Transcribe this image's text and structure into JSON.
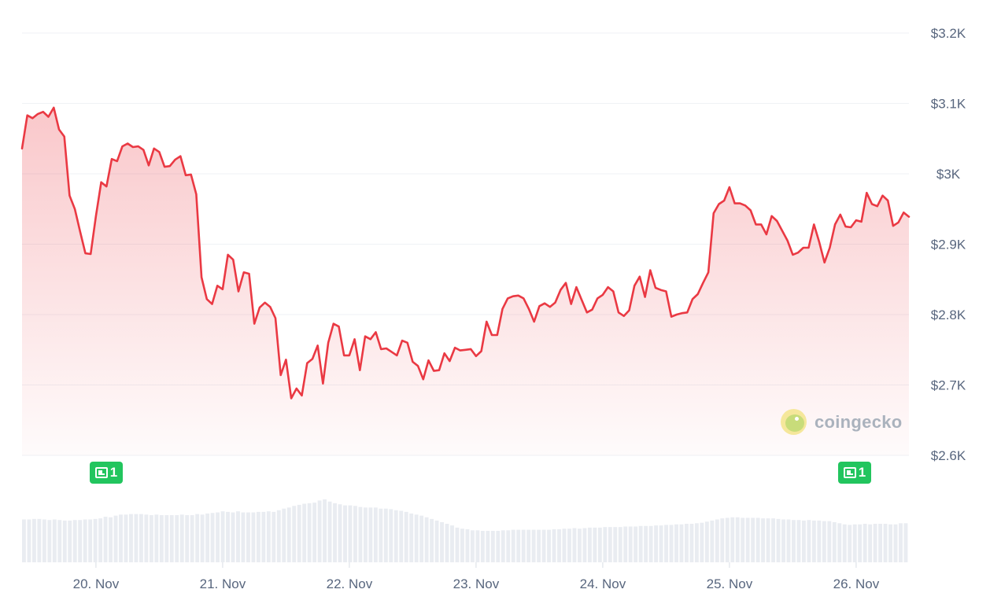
{
  "colors": {
    "line": "#ea3943",
    "grid": "#eff2f5",
    "volume": "#e9ecf1",
    "badge": "#22c55e",
    "axis_text": "#58667e"
  },
  "watermark": {
    "icon": "gecko-logo-icon",
    "text": "coingecko"
  },
  "news": [
    {
      "icon": "newspaper-icon",
      "count": "1",
      "date": "20. Nov"
    },
    {
      "icon": "newspaper-icon",
      "count": "1",
      "date": "26. Nov"
    }
  ],
  "chart_data": {
    "type": "area",
    "y_axis": {
      "position": "right",
      "ticks": [
        "$3.2K",
        "$3.1K",
        "$3K",
        "$2.9K",
        "$2.8K",
        "$2.7K",
        "$2.6K"
      ],
      "ylim": [
        2600,
        3200
      ]
    },
    "x_axis": {
      "ticks": [
        "20. Nov",
        "21. Nov",
        "22. Nov",
        "23. Nov",
        "24. Nov",
        "25. Nov",
        "26. Nov"
      ]
    },
    "grid": "horizontal",
    "series": [
      {
        "x_start": "2024-11-19T10:00",
        "x_end": "2024-11-26T10:00",
        "values": [
          3036,
          3083,
          3079,
          3085,
          3088,
          3081,
          3094,
          3063,
          3053,
          2969,
          2950,
          2918,
          2887,
          2886,
          2940,
          2988,
          2982,
          3021,
          3018,
          3039,
          3043,
          3038,
          3039,
          3034,
          3012,
          3036,
          3031,
          3010,
          3011,
          3020,
          3025,
          2998,
          2999,
          2971,
          2853,
          2822,
          2815,
          2841,
          2836,
          2885,
          2878,
          2833,
          2860,
          2858,
          2787,
          2810,
          2817,
          2811,
          2795,
          2714,
          2736,
          2681,
          2695,
          2685,
          2731,
          2737,
          2756,
          2702,
          2760,
          2787,
          2783,
          2742,
          2742,
          2765,
          2721,
          2769,
          2765,
          2775,
          2751,
          2752,
          2747,
          2742,
          2763,
          2760,
          2733,
          2727,
          2708,
          2735,
          2720,
          2721,
          2745,
          2734,
          2753,
          2749,
          2750,
          2751,
          2741,
          2748,
          2790,
          2771,
          2771,
          2808,
          2823,
          2826,
          2827,
          2823,
          2808,
          2790,
          2812,
          2816,
          2811,
          2817,
          2835,
          2845,
          2815,
          2839,
          2821,
          2803,
          2807,
          2823,
          2828,
          2839,
          2833,
          2803,
          2798,
          2806,
          2841,
          2854,
          2825,
          2863,
          2838,
          2835,
          2833,
          2797,
          2800,
          2802,
          2803,
          2822,
          2829,
          2845,
          2860,
          2944,
          2957,
          2962,
          2981,
          2958,
          2958,
          2955,
          2948,
          2928,
          2928,
          2914,
          2940,
          2933,
          2919,
          2905,
          2885,
          2888,
          2895,
          2895,
          2928,
          2903,
          2874,
          2895,
          2928,
          2942,
          2925,
          2924,
          2934,
          2932,
          2973,
          2957,
          2954,
          2969,
          2962,
          2926,
          2931,
          2945,
          2939
        ]
      }
    ],
    "volume": [
      79,
      79,
      80,
      80,
      79,
      78,
      79,
      78,
      77,
      77,
      78,
      78,
      79,
      79,
      80,
      81,
      84,
      83,
      86,
      88,
      88,
      89,
      89,
      89,
      88,
      87,
      88,
      87,
      87,
      87,
      87,
      88,
      87,
      87,
      89,
      88,
      90,
      91,
      92,
      94,
      93,
      92,
      94,
      92,
      92,
      92,
      93,
      93,
      94,
      93,
      96,
      99,
      101,
      104,
      106,
      108,
      109,
      110,
      114,
      116,
      112,
      109,
      107,
      105,
      105,
      104,
      102,
      101,
      101,
      101,
      99,
      99,
      98,
      96,
      95,
      93,
      90,
      88,
      86,
      83,
      80,
      77,
      74,
      71,
      68,
      64,
      62,
      61,
      59,
      59,
      58,
      58,
      58,
      58,
      59,
      59,
      60,
      60,
      60,
      60,
      60,
      60,
      60,
      60,
      61,
      61,
      62,
      62,
      63,
      62,
      63,
      64,
      64,
      64,
      65,
      65,
      65,
      65,
      66,
      66,
      66,
      67,
      67,
      67,
      68,
      68,
      69,
      69,
      70,
      70,
      71,
      71,
      72,
      73,
      75,
      77,
      79,
      81,
      82,
      83,
      83,
      82,
      82,
      82,
      82,
      81,
      81,
      81,
      80,
      79,
      79,
      78,
      78,
      77,
      78,
      77,
      77,
      76,
      76,
      74,
      72,
      70,
      69,
      70,
      70,
      71,
      70,
      71,
      71,
      71,
      70,
      70,
      72,
      72
    ]
  }
}
